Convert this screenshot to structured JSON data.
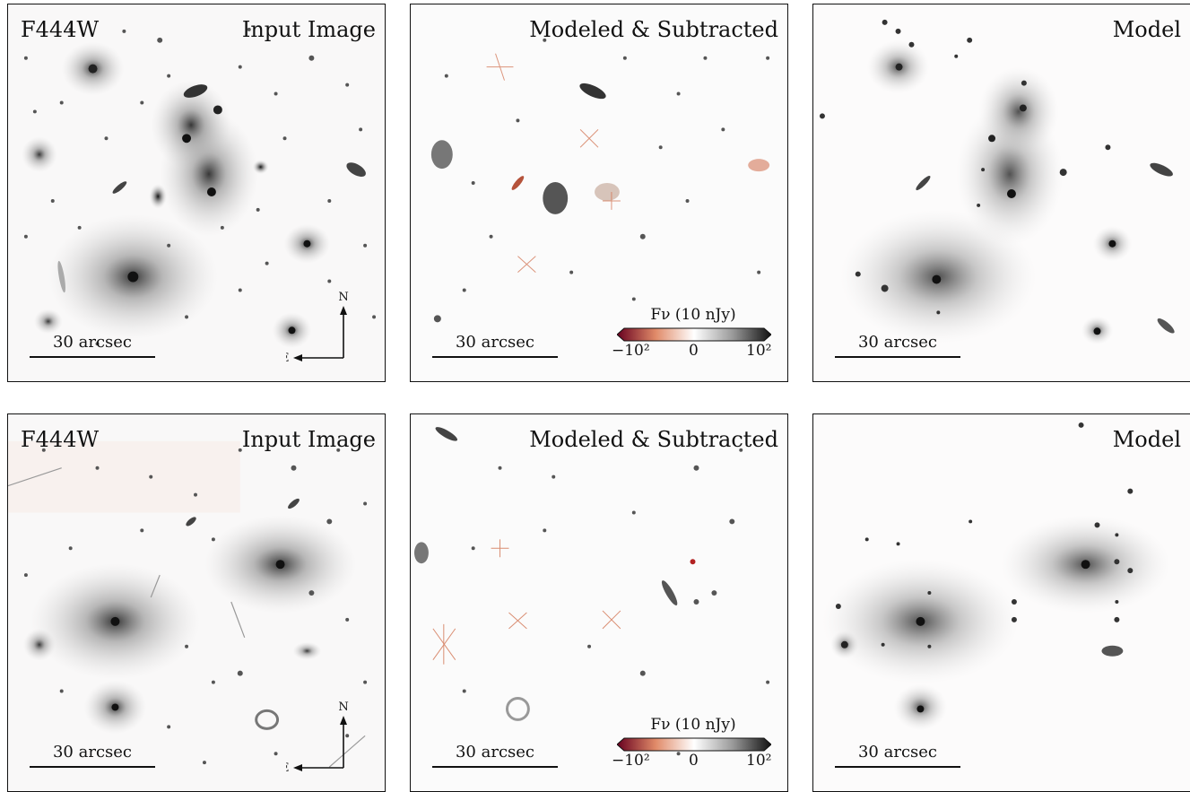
{
  "rows": [
    {
      "panels": [
        {
          "filter": "F444W",
          "title": "Input Image",
          "scale": "30 arcsec",
          "compass": {
            "north": "N",
            "east": "E"
          }
        },
        {
          "title": "Modeled & Subtracted",
          "scale": "30 arcsec",
          "colorbar": {
            "label": "Fν (10 nJy)",
            "tick_min": "−10²",
            "tick_mid": "0",
            "tick_max": "10²"
          }
        },
        {
          "title": "Model",
          "scale": "30 arcsec"
        }
      ]
    },
    {
      "panels": [
        {
          "filter": "F444W",
          "title": "Input Image",
          "scale": "30 arcsec",
          "compass": {
            "north": "N",
            "east": "E"
          }
        },
        {
          "title": "Modeled & Subtracted",
          "scale": "30 arcsec",
          "colorbar": {
            "label": "Fν (10 nJy)",
            "tick_min": "−10²",
            "tick_mid": "0",
            "tick_max": "10²"
          }
        },
        {
          "title": "Model",
          "scale": "30 arcsec"
        }
      ]
    }
  ],
  "colors": {
    "frame": "#111111",
    "negative": "#8b0000",
    "positive": "#111111",
    "background": "#fafafa"
  }
}
